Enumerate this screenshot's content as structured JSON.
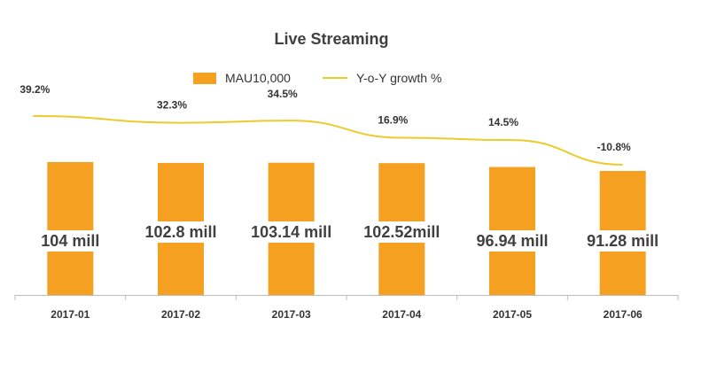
{
  "colors": {
    "bar": "#F5A021",
    "line": "#ECCB2C",
    "axis": "#BBBBBB",
    "label_band": "#FFFFFF"
  },
  "chart_data": {
    "type": "bar",
    "title": "Live Streaming",
    "categories": [
      "2017-01",
      "2017-02",
      "2017-03",
      "2017-04",
      "2017-05",
      "2017-06"
    ],
    "series": [
      {
        "name": "MAU10,000",
        "type": "bar",
        "values": [
          10400,
          10280,
          10314,
          10252,
          9694,
          9128
        ],
        "labels": [
          "104 mill",
          "102.8 mill",
          "103.14 mill",
          "102.52mill",
          "96.94 mill",
          "91.28 mill"
        ]
      },
      {
        "name": "Y-o-Y growth %",
        "type": "line",
        "values": [
          39.2,
          32.3,
          34.5,
          16.9,
          14.5,
          -10.8
        ],
        "labels": [
          "39.2%",
          "32.3%",
          "34.5%",
          "16.9%",
          "14.5%",
          "-10.8%"
        ]
      }
    ],
    "xlabel": "",
    "ylabel": "",
    "grid": false,
    "legend_position": "top-center"
  }
}
